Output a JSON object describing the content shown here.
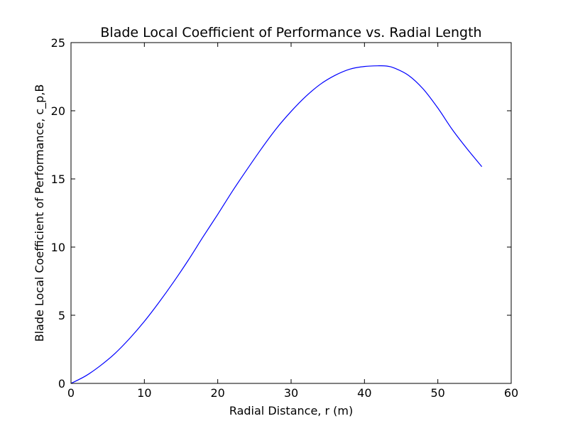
{
  "chart_data": {
    "type": "line",
    "title": "Blade Local Coefficient of Performance vs. Radial Length",
    "xlabel": "Radial Distance, r (m)",
    "ylabel": "Blade Local Coefficient of Performance, c_p,B",
    "xlim": [
      0,
      60
    ],
    "ylim": [
      0,
      25
    ],
    "xticks": [
      0,
      10,
      20,
      30,
      40,
      50,
      60
    ],
    "yticks": [
      0,
      5,
      10,
      15,
      20,
      25
    ],
    "grid": false,
    "series": [
      {
        "color": "#0000ff",
        "x": [
          0,
          2,
          4,
          6,
          8,
          10,
          12,
          14,
          16,
          18,
          20,
          22,
          24,
          26,
          28,
          30,
          32,
          34,
          36,
          38,
          40,
          42,
          43,
          44,
          46,
          48,
          50,
          52,
          54,
          56
        ],
        "y": [
          0,
          0.55,
          1.3,
          2.2,
          3.3,
          4.55,
          5.95,
          7.45,
          9.05,
          10.75,
          12.4,
          14.1,
          15.7,
          17.25,
          18.7,
          19.95,
          21.05,
          21.95,
          22.6,
          23.05,
          23.25,
          23.3,
          23.28,
          23.15,
          22.6,
          21.6,
          20.2,
          18.6,
          17.2,
          15.9
        ]
      }
    ]
  }
}
